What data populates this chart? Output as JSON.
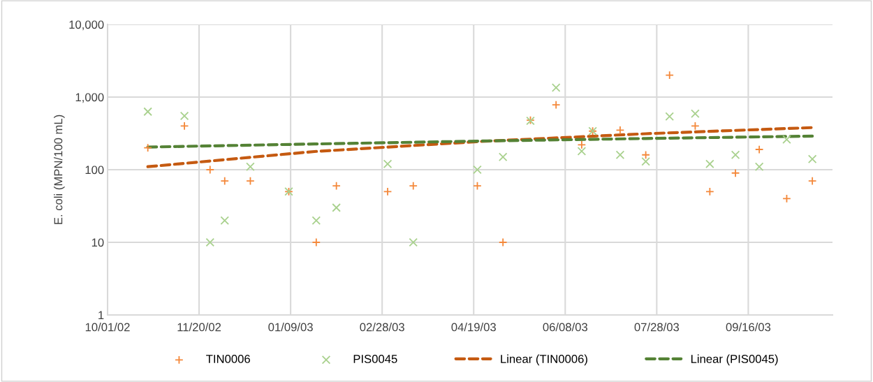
{
  "chart_data": {
    "type": "scatter",
    "ylabel": "E. coli (MPN/100 mL)",
    "log": true,
    "grid": true,
    "legend": "bottom",
    "xlim": [
      "2002-10-01",
      "2003-11-01"
    ],
    "xticks": [
      {
        "value": "2002-10-01",
        "label": "10/01/02"
      },
      {
        "value": "2002-11-20",
        "label": "11/20/02"
      },
      {
        "value": "2003-01-09",
        "label": "01/09/03"
      },
      {
        "value": "2003-02-28",
        "label": "02/28/03"
      },
      {
        "value": "2003-04-19",
        "label": "04/19/03"
      },
      {
        "value": "2003-06-08",
        "label": "06/08/03"
      },
      {
        "value": "2003-07-28",
        "label": "07/28/03"
      },
      {
        "value": "2003-09-16",
        "label": "09/16/03"
      }
    ],
    "ylim": [
      1,
      10000
    ],
    "yticks": [
      1,
      10,
      100,
      {
        "value": 1000,
        "label": "1,000"
      },
      {
        "value": 10000,
        "label": "10,000"
      }
    ],
    "series": [
      {
        "name": "TIN0006",
        "marker": "plus",
        "color": "#f4883a",
        "x": [
          "2002-10-23",
          "2002-11-12",
          "2002-11-26",
          "2002-12-04",
          "2002-12-18",
          "2003-01-08",
          "2003-01-23",
          "2003-02-03",
          "2003-03-03",
          "2003-03-17",
          "2003-04-21",
          "2003-05-05",
          "2003-05-20",
          "2003-06-03",
          "2003-06-17",
          "2003-06-23",
          "2003-07-08",
          "2003-07-22",
          "2003-08-04",
          "2003-08-18",
          "2003-08-26",
          "2003-09-09",
          "2003-09-22",
          "2003-10-07",
          "2003-10-21"
        ],
        "values": [
          200,
          400,
          100,
          70,
          70,
          50,
          10,
          60,
          50,
          60,
          60,
          10,
          480,
          780,
          220,
          340,
          350,
          160,
          2000,
          400,
          50,
          90,
          190,
          40,
          70
        ]
      },
      {
        "name": "PIS0045",
        "marker": "cross",
        "color": "#a9d18e",
        "x": [
          "2002-10-23",
          "2002-11-12",
          "2002-11-26",
          "2002-12-04",
          "2002-12-18",
          "2003-01-08",
          "2003-01-23",
          "2003-02-03",
          "2003-03-03",
          "2003-03-17",
          "2003-04-21",
          "2003-05-05",
          "2003-05-20",
          "2003-06-03",
          "2003-06-17",
          "2003-06-23",
          "2003-07-08",
          "2003-07-22",
          "2003-08-04",
          "2003-08-18",
          "2003-08-26",
          "2003-09-09",
          "2003-09-22",
          "2003-10-07",
          "2003-10-21"
        ],
        "values": [
          630,
          550,
          10,
          20,
          110,
          50,
          20,
          30,
          120,
          10,
          100,
          150,
          470,
          1350,
          180,
          340,
          160,
          130,
          540,
          590,
          120,
          160,
          110,
          260,
          140
        ]
      },
      {
        "name": "Linear (TIN0006)",
        "type": "line",
        "line_style": "dashed",
        "color": "#c55a11",
        "x": [
          "2002-10-23",
          "2003-01-22",
          "2003-04-23",
          "2003-07-22",
          "2003-10-21"
        ],
        "values": [
          110,
          178,
          245,
          313,
          380
        ]
      },
      {
        "name": "Linear (PIS0045)",
        "type": "line",
        "line_style": "dashed",
        "color": "#548235",
        "x": [
          "2002-10-23",
          "2003-01-22",
          "2003-04-23",
          "2003-07-22",
          "2003-10-21"
        ],
        "values": [
          205,
          226,
          248,
          269,
          290
        ]
      }
    ]
  }
}
